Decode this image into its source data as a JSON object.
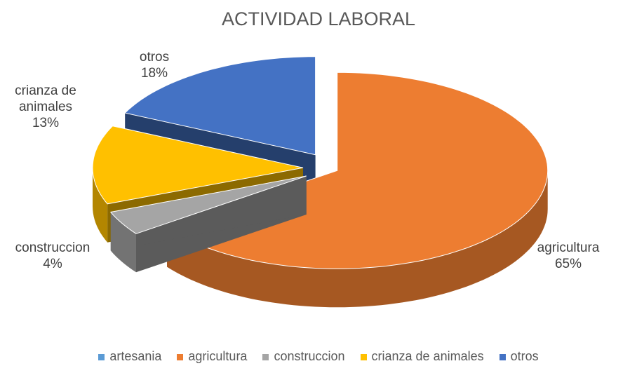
{
  "chart_data": {
    "type": "pie",
    "title": "ACTIVIDAD LABORAL",
    "categories": [
      "artesania",
      "agricultura",
      "construccion",
      "crianza de animales",
      "otros"
    ],
    "values": [
      0,
      65,
      4,
      13,
      18
    ],
    "value_labels": [
      null,
      "65%",
      "4%",
      "13%",
      "18%"
    ],
    "colors": [
      "#5b9bd5",
      "#ed7d31",
      "#a5a5a5",
      "#ffc000",
      "#4472c4"
    ],
    "legend": "bottom"
  }
}
